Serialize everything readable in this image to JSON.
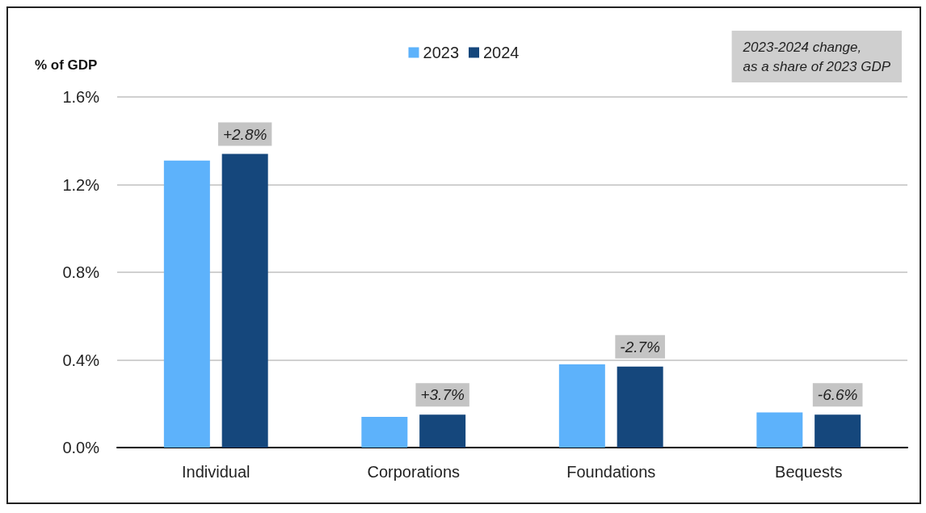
{
  "chart_data": {
    "type": "bar",
    "ylabel": "% of GDP",
    "categories": [
      "Individual",
      "Corporations",
      "Foundations",
      "Bequests"
    ],
    "series": [
      {
        "name": "2023",
        "color": "#5db2fb",
        "values": [
          1.31,
          0.14,
          0.38,
          0.16
        ]
      },
      {
        "name": "2024",
        "color": "#15477c",
        "values": [
          1.34,
          0.15,
          0.37,
          0.15
        ]
      }
    ],
    "ylim": [
      0,
      1.6
    ],
    "yticks": [
      {
        "value": 0,
        "label": "0.0%"
      },
      {
        "value": 0.4,
        "label": "0.4%"
      },
      {
        "value": 0.8,
        "label": "0.8%"
      },
      {
        "value": 1.2,
        "label": "1.2%"
      },
      {
        "value": 1.6,
        "label": "1.6%"
      }
    ],
    "grid": "y",
    "legend": "top",
    "annotations": [
      "2023-2024 change,\nas a share of 2023 GDP",
      "+2.8%",
      "+3.7%",
      "-2.7%",
      "-6.6%"
    ]
  }
}
